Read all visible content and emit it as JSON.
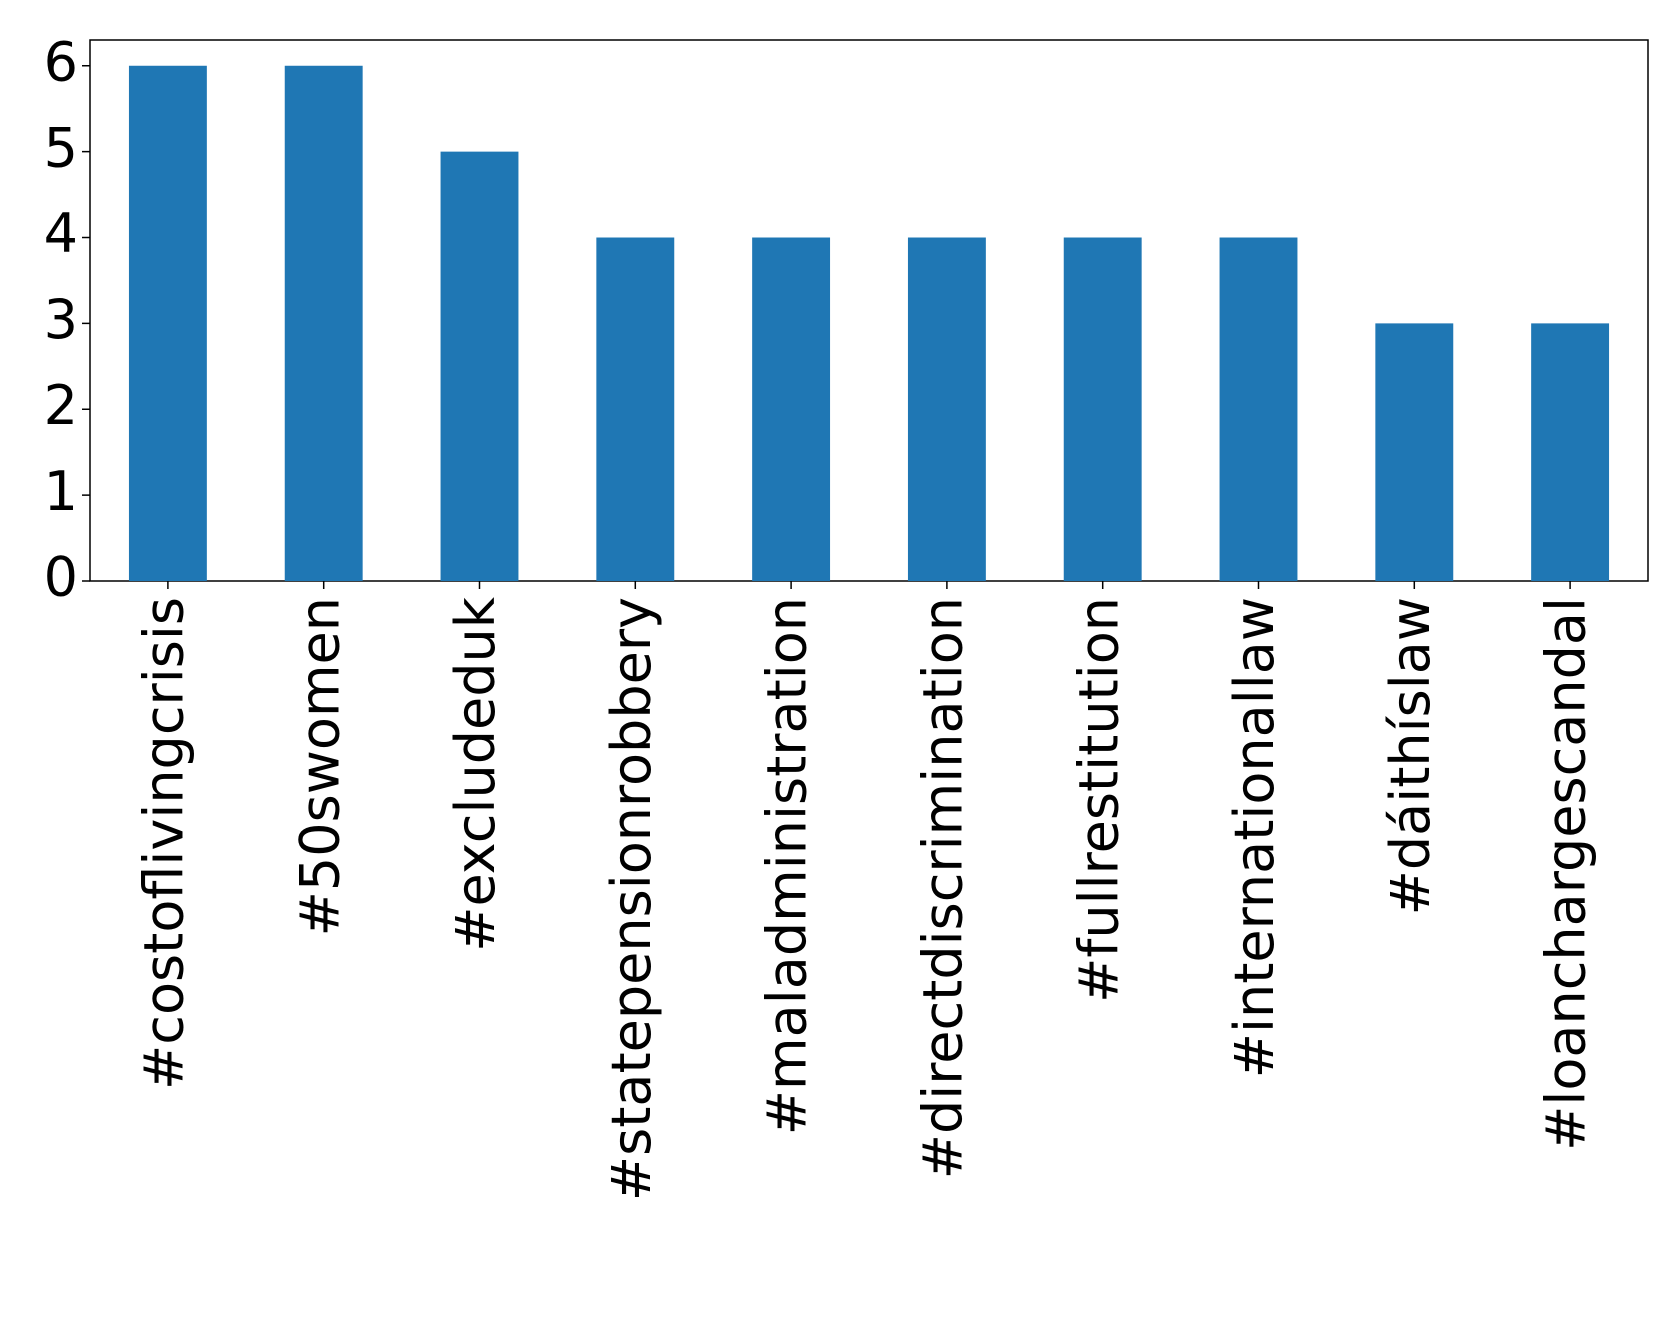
{
  "chart_data": {
    "type": "bar",
    "categories": [
      "#costoflivingcrisis",
      "#50swomen",
      "#excludeduk",
      "#statepensionrobbery",
      "#maladministration",
      "#directdiscrimination",
      "#fullrestitution",
      "#internationallaw",
      "#dáithíslaw",
      "#loanchargescandal"
    ],
    "values": [
      6,
      6,
      5,
      4,
      4,
      4,
      4,
      4,
      3,
      3
    ],
    "color": "#1f77b4",
    "ylim": [
      0,
      6.3
    ],
    "yticks": [
      0,
      1,
      2,
      3,
      4,
      5,
      6
    ],
    "grid": false
  }
}
